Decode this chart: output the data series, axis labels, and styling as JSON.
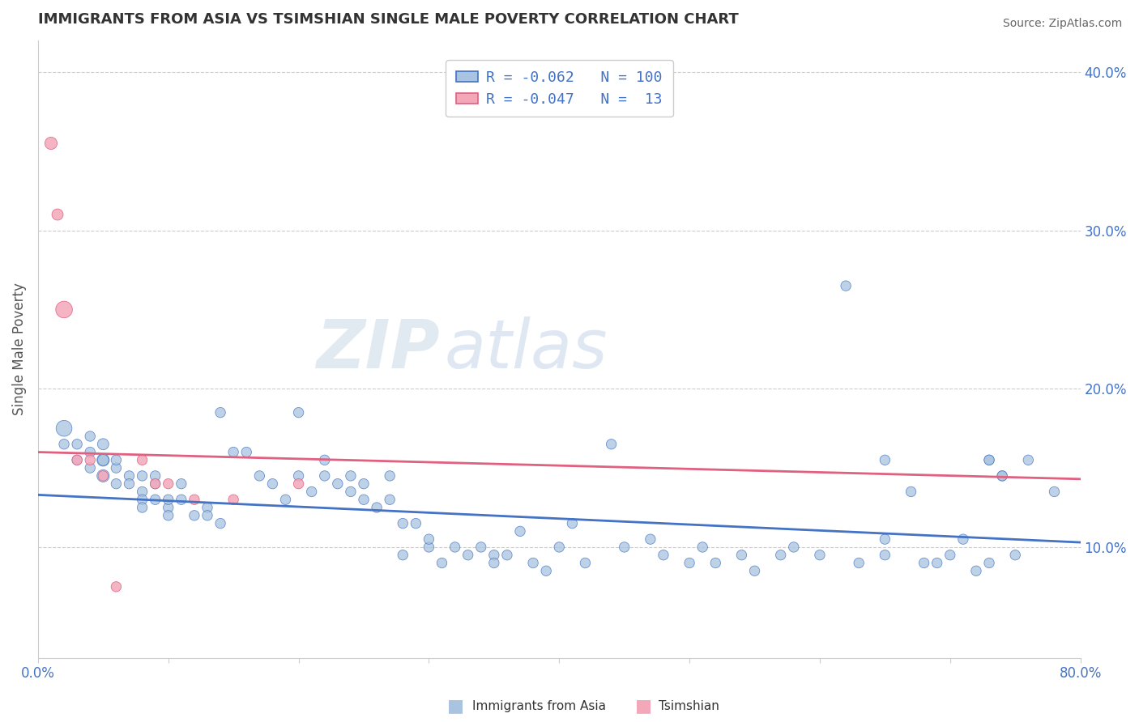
{
  "title": "IMMIGRANTS FROM ASIA VS TSIMSHIAN SINGLE MALE POVERTY CORRELATION CHART",
  "source": "Source: ZipAtlas.com",
  "ylabel": "Single Male Poverty",
  "x_min": 0.0,
  "x_max": 0.8,
  "y_min": 0.03,
  "y_max": 0.42,
  "x_ticks": [
    0.0,
    0.1,
    0.2,
    0.3,
    0.4,
    0.5,
    0.6,
    0.7,
    0.8
  ],
  "y_ticks_right": [
    0.1,
    0.2,
    0.3,
    0.4
  ],
  "y_tick_labels_right": [
    "10.0%",
    "20.0%",
    "30.0%",
    "40.0%"
  ],
  "color_blue": "#a8c4e0",
  "color_pink": "#f4a7b9",
  "trend_blue": "#4472c4",
  "trend_pink": "#e06080",
  "watermark_zip": "ZIP",
  "watermark_atlas": "atlas",
  "blue_trend_x0": 0.0,
  "blue_trend_y0": 0.133,
  "blue_trend_x1": 0.8,
  "blue_trend_y1": 0.103,
  "pink_trend_x0": 0.0,
  "pink_trend_y0": 0.16,
  "pink_trend_x1": 0.8,
  "pink_trend_y1": 0.143,
  "blue_scatter_x": [
    0.02,
    0.02,
    0.03,
    0.03,
    0.04,
    0.04,
    0.04,
    0.05,
    0.05,
    0.05,
    0.05,
    0.06,
    0.06,
    0.06,
    0.07,
    0.07,
    0.08,
    0.08,
    0.08,
    0.08,
    0.09,
    0.09,
    0.09,
    0.1,
    0.1,
    0.1,
    0.11,
    0.11,
    0.12,
    0.13,
    0.13,
    0.14,
    0.14,
    0.15,
    0.16,
    0.17,
    0.18,
    0.19,
    0.2,
    0.2,
    0.21,
    0.22,
    0.22,
    0.23,
    0.24,
    0.24,
    0.25,
    0.25,
    0.26,
    0.27,
    0.27,
    0.28,
    0.28,
    0.29,
    0.3,
    0.3,
    0.31,
    0.32,
    0.33,
    0.34,
    0.35,
    0.35,
    0.36,
    0.37,
    0.38,
    0.39,
    0.4,
    0.41,
    0.42,
    0.44,
    0.45,
    0.47,
    0.48,
    0.5,
    0.51,
    0.52,
    0.54,
    0.55,
    0.57,
    0.58,
    0.6,
    0.62,
    0.63,
    0.65,
    0.65,
    0.68,
    0.7,
    0.72,
    0.73,
    0.74,
    0.65,
    0.67,
    0.69,
    0.71,
    0.73,
    0.75,
    0.73,
    0.74,
    0.76,
    0.78
  ],
  "blue_scatter_y": [
    0.175,
    0.165,
    0.165,
    0.155,
    0.16,
    0.15,
    0.17,
    0.155,
    0.145,
    0.155,
    0.165,
    0.14,
    0.15,
    0.155,
    0.145,
    0.14,
    0.145,
    0.135,
    0.13,
    0.125,
    0.13,
    0.14,
    0.145,
    0.125,
    0.13,
    0.12,
    0.14,
    0.13,
    0.12,
    0.125,
    0.12,
    0.115,
    0.185,
    0.16,
    0.16,
    0.145,
    0.14,
    0.13,
    0.145,
    0.185,
    0.135,
    0.145,
    0.155,
    0.14,
    0.135,
    0.145,
    0.13,
    0.14,
    0.125,
    0.145,
    0.13,
    0.115,
    0.095,
    0.115,
    0.1,
    0.105,
    0.09,
    0.1,
    0.095,
    0.1,
    0.095,
    0.09,
    0.095,
    0.11,
    0.09,
    0.085,
    0.1,
    0.115,
    0.09,
    0.165,
    0.1,
    0.105,
    0.095,
    0.09,
    0.1,
    0.09,
    0.095,
    0.085,
    0.095,
    0.1,
    0.095,
    0.265,
    0.09,
    0.095,
    0.105,
    0.09,
    0.095,
    0.085,
    0.155,
    0.145,
    0.155,
    0.135,
    0.09,
    0.105,
    0.09,
    0.095,
    0.155,
    0.145,
    0.155,
    0.135
  ],
  "blue_scatter_size": [
    200,
    80,
    80,
    80,
    80,
    80,
    80,
    120,
    120,
    100,
    100,
    80,
    80,
    80,
    80,
    80,
    80,
    80,
    80,
    80,
    80,
    80,
    80,
    80,
    80,
    80,
    80,
    80,
    80,
    80,
    80,
    80,
    80,
    80,
    80,
    80,
    80,
    80,
    80,
    80,
    80,
    80,
    80,
    80,
    80,
    80,
    80,
    80,
    80,
    80,
    80,
    80,
    80,
    80,
    80,
    80,
    80,
    80,
    80,
    80,
    80,
    80,
    80,
    80,
    80,
    80,
    80,
    80,
    80,
    80,
    80,
    80,
    80,
    80,
    80,
    80,
    80,
    80,
    80,
    80,
    80,
    80,
    80,
    80,
    80,
    80,
    80,
    80,
    80,
    80,
    80,
    80,
    80,
    80,
    80,
    80,
    80,
    80,
    80,
    80
  ],
  "pink_scatter_x": [
    0.01,
    0.015,
    0.02,
    0.03,
    0.04,
    0.05,
    0.06,
    0.08,
    0.09,
    0.1,
    0.12,
    0.15,
    0.2
  ],
  "pink_scatter_y": [
    0.355,
    0.31,
    0.25,
    0.155,
    0.155,
    0.145,
    0.075,
    0.155,
    0.14,
    0.14,
    0.13,
    0.13,
    0.14
  ],
  "pink_scatter_size": [
    120,
    100,
    220,
    80,
    80,
    80,
    80,
    80,
    80,
    80,
    80,
    80,
    80
  ]
}
